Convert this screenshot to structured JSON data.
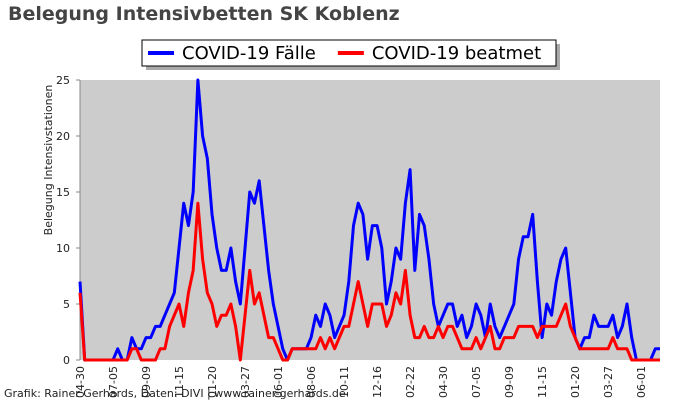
{
  "chart_data": {
    "type": "line",
    "title": "Belegung Intensivbetten SK Koblenz",
    "y_label": "Belegung Intensivstationen",
    "source": "Grafik: Rainer Gerhards, Daten: DIVI | www.rainer-gerhards.de",
    "legend": "top",
    "grid": false,
    "ylim": [
      0,
      25
    ],
    "yticks": [
      0,
      5,
      10,
      15,
      20,
      25
    ],
    "categories": [
      "04-30",
      null,
      null,
      null,
      null,
      null,
      null,
      "07-05",
      null,
      null,
      null,
      null,
      null,
      null,
      "09-09",
      null,
      null,
      null,
      null,
      null,
      null,
      "11-15",
      null,
      null,
      null,
      null,
      null,
      null,
      "01-20",
      null,
      null,
      null,
      null,
      null,
      null,
      "03-27",
      null,
      null,
      null,
      null,
      null,
      null,
      "06-01",
      null,
      null,
      null,
      null,
      null,
      null,
      "08-06",
      null,
      null,
      null,
      null,
      null,
      null,
      "10-11",
      null,
      null,
      null,
      null,
      null,
      null,
      "12-16",
      null,
      null,
      null,
      null,
      null,
      null,
      "02-22",
      null,
      null,
      null,
      null,
      null,
      null,
      "04-30",
      null,
      null,
      null,
      null,
      null,
      null,
      "07-05",
      null,
      null,
      null,
      null,
      null,
      null,
      "09-09",
      null,
      null,
      null,
      null,
      null,
      null,
      "11-15",
      null,
      null,
      null,
      null,
      null,
      null,
      "01-20",
      null,
      null,
      null,
      null,
      null,
      null,
      "03-27",
      null,
      null,
      null,
      null,
      null,
      null,
      "06-01",
      null,
      null,
      null,
      null
    ],
    "series": [
      {
        "name": "COVID-19 Fälle",
        "color": "#0000ff",
        "values": [
          7,
          0,
          0,
          0,
          0,
          0,
          0,
          0,
          1,
          0,
          0,
          2,
          1,
          1,
          2,
          2,
          3,
          3,
          4,
          5,
          6,
          10,
          14,
          12,
          15,
          25,
          20,
          18,
          13,
          10,
          8,
          8,
          10,
          7,
          5,
          10,
          15,
          14,
          16,
          12,
          8,
          5,
          3,
          1,
          0,
          1,
          1,
          1,
          1,
          2,
          4,
          3,
          5,
          4,
          2,
          3,
          4,
          7,
          12,
          14,
          13,
          9,
          12,
          12,
          10,
          5,
          7,
          10,
          9,
          14,
          17,
          8,
          13,
          12,
          9,
          5,
          3,
          4,
          5,
          5,
          3,
          4,
          2,
          3,
          5,
          4,
          2,
          5,
          3,
          2,
          3,
          4,
          5,
          9,
          11,
          11,
          13,
          7,
          2,
          5,
          4,
          7,
          9,
          10,
          6,
          2,
          1,
          2,
          2,
          4,
          3,
          3,
          3,
          4,
          2,
          3,
          5,
          2,
          0,
          0,
          0,
          0,
          1,
          1
        ]
      },
      {
        "name": "COVID-19 beatmet",
        "color": "#ff0000",
        "values": [
          6,
          0,
          0,
          0,
          0,
          0,
          0,
          0,
          0,
          0,
          0,
          1,
          1,
          0,
          0,
          0,
          0,
          1,
          1,
          3,
          4,
          5,
          3,
          6,
          8,
          14,
          9,
          6,
          5,
          3,
          4,
          4,
          5,
          3,
          0,
          4,
          8,
          5,
          6,
          4,
          2,
          2,
          1,
          0,
          0,
          1,
          1,
          1,
          1,
          1,
          1,
          2,
          1,
          2,
          1,
          2,
          3,
          3,
          5,
          7,
          5,
          3,
          5,
          5,
          5,
          3,
          4,
          6,
          5,
          8,
          4,
          2,
          2,
          3,
          2,
          2,
          3,
          2,
          3,
          3,
          2,
          1,
          1,
          1,
          2,
          1,
          2,
          3,
          1,
          1,
          2,
          2,
          2,
          3,
          3,
          3,
          3,
          2,
          3,
          3,
          3,
          3,
          4,
          5,
          3,
          2,
          1,
          1,
          1,
          1,
          1,
          1,
          1,
          2,
          1,
          1,
          1,
          0,
          0,
          0,
          0,
          0,
          0,
          0
        ]
      }
    ]
  }
}
